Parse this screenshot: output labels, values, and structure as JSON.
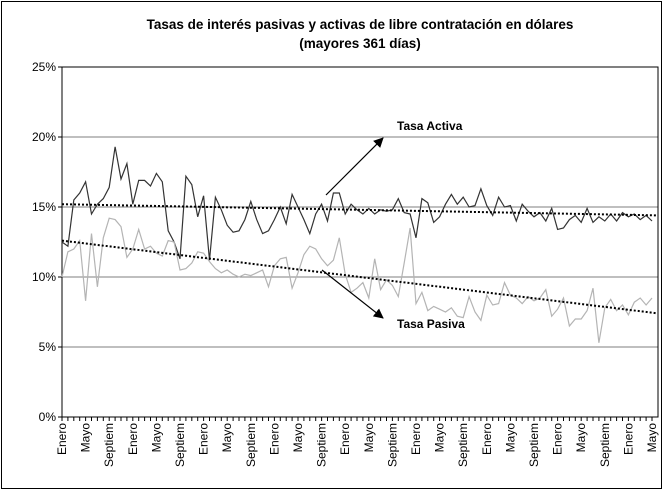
{
  "chart_data": {
    "type": "line",
    "title": [
      "Tasas de interés pasivas y activas  de libre contratación en dólares",
      "(mayores 361 días)"
    ],
    "annotations": [
      "Tasa Activa",
      "Tasa Pasiva"
    ],
    "categories": [
      "Enero",
      null,
      null,
      null,
      "Mayo",
      null,
      null,
      null,
      "Septiem",
      null,
      null,
      null,
      "Enero",
      null,
      null,
      null,
      "Mayo",
      null,
      null,
      null,
      "Septiem",
      null,
      null,
      null,
      "Enero",
      null,
      null,
      null,
      "Mayo",
      null,
      null,
      null,
      "Septiem",
      null,
      null,
      null,
      "Enero",
      null,
      null,
      null,
      "Mayo",
      null,
      null,
      null,
      "Septiem",
      null,
      null,
      null,
      "Enero",
      null,
      null,
      null,
      "Mayo",
      null,
      null,
      null,
      "Septiem",
      null,
      null,
      null,
      "Enero",
      null,
      null,
      null,
      "Mayo",
      null,
      null,
      null,
      "Septiem",
      null,
      null,
      null,
      "Enero",
      null,
      null,
      null,
      "Mayo",
      null,
      null,
      null,
      "Septiem",
      null,
      null,
      null,
      "Enero",
      null,
      null,
      null,
      "Mayo",
      null,
      null,
      null,
      "Septiem",
      null,
      null,
      null,
      "Enero",
      null,
      null,
      null,
      "Mayo"
    ],
    "series": [
      {
        "color": "#333333",
        "trend": [
          15.2,
          14.4
        ],
        "values": [
          12.5,
          12.2,
          15.5,
          16.0,
          16.8,
          14.5,
          15.2,
          15.6,
          16.4,
          19.3,
          17.0,
          18.1,
          15.2,
          16.9,
          16.9,
          16.5,
          17.4,
          16.8,
          13.3,
          12.5,
          11.3,
          17.2,
          16.6,
          14.3,
          15.8,
          11.2,
          15.7,
          14.8,
          13.7,
          13.2,
          13.3,
          14.1,
          15.4,
          14.1,
          13.1,
          13.3,
          14.1,
          15.0,
          13.8,
          15.9,
          15.0,
          14.1,
          13.1,
          14.5,
          15.2,
          14.0,
          16.0,
          16.0,
          14.5,
          15.2,
          14.8,
          14.5,
          14.9,
          14.5,
          14.8,
          14.7,
          14.8,
          15.6,
          14.6,
          14.5,
          12.8,
          15.6,
          15.3,
          13.9,
          14.3,
          15.2,
          15.9,
          15.2,
          15.7,
          15.0,
          15.1,
          16.3,
          15.1,
          14.4,
          15.7,
          15.0,
          15.1,
          14.0,
          15.2,
          14.7,
          14.3,
          14.6,
          14.0,
          14.9,
          13.4,
          13.5,
          14.1,
          14.4,
          13.9,
          14.9,
          13.9,
          14.3,
          14.0,
          14.5,
          14.0,
          14.6,
          14.3,
          14.5,
          14.1,
          14.4,
          14.0
        ]
      },
      {
        "color": "#b4b4b4",
        "trend": [
          12.6,
          7.4
        ],
        "values": [
          10.0,
          11.8,
          12.0,
          12.6,
          8.3,
          13.1,
          9.3,
          12.8,
          14.2,
          14.1,
          13.6,
          11.4,
          12.0,
          13.4,
          12.0,
          12.2,
          11.7,
          11.5,
          12.6,
          12.5,
          10.5,
          10.6,
          11.0,
          11.8,
          11.7,
          11.1,
          10.6,
          10.3,
          10.5,
          10.2,
          10.0,
          10.2,
          10.1,
          10.3,
          10.5,
          9.3,
          10.8,
          11.3,
          11.4,
          9.2,
          10.3,
          11.6,
          12.2,
          12.0,
          11.3,
          10.8,
          11.2,
          12.8,
          10.2,
          8.9,
          9.2,
          9.6,
          8.5,
          11.3,
          9.1,
          9.8,
          9.4,
          8.6,
          11.0,
          13.5,
          8.1,
          8.9,
          7.6,
          7.9,
          7.7,
          7.5,
          7.8,
          7.2,
          7.1,
          8.6,
          7.5,
          6.9,
          8.7,
          8.0,
          8.1,
          9.6,
          8.7,
          8.5,
          8.1,
          8.6,
          8.3,
          8.5,
          9.1,
          7.2,
          7.7,
          8.5,
          6.5,
          7.0,
          7.0,
          7.6,
          9.2,
          5.3,
          7.8,
          8.4,
          7.6,
          8.0,
          7.3,
          8.2,
          8.5,
          8.0,
          8.5
        ]
      }
    ],
    "ylim": [
      0,
      25
    ],
    "yticks": [
      {
        "value": 0,
        "label": "0%"
      },
      {
        "value": 5,
        "label": "5%"
      },
      {
        "value": 10,
        "label": "10%"
      },
      {
        "value": 15,
        "label": "15%"
      },
      {
        "value": 20,
        "label": "20%"
      },
      {
        "value": 25,
        "label": "25%"
      }
    ],
    "grid": true
  }
}
